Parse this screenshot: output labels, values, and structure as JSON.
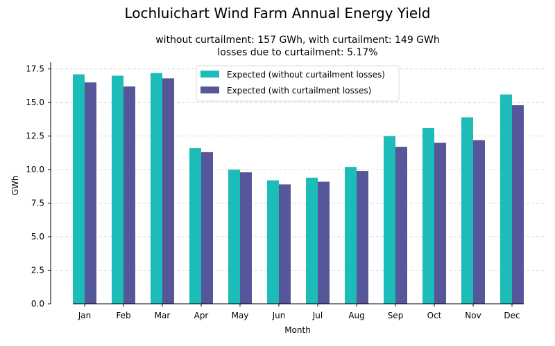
{
  "figure": {
    "suptitle": "Lochluichart Wind Farm Annual Energy Yield",
    "subtitle_line1": "without curtailment: 157 GWh, with curtailment: 149 GWh",
    "subtitle_line2": "losses due to curtailment: 5.17%"
  },
  "chart_data": {
    "type": "bar",
    "title": "without curtailment: 157 GWh, with curtailment: 149 GWh\nlosses due to curtailment: 5.17%",
    "xlabel": "Month",
    "ylabel": "GWh",
    "ylim": [
      0,
      18
    ],
    "yticks": [
      0.0,
      2.5,
      5.0,
      7.5,
      10.0,
      12.5,
      15.0,
      17.5
    ],
    "ytick_labels": [
      "0.0",
      "2.5",
      "5.0",
      "7.5",
      "10.0",
      "12.5",
      "15.0",
      "17.5"
    ],
    "grid": "y-dashed",
    "legend_position": "top-center",
    "categories": [
      "Jan",
      "Feb",
      "Mar",
      "Apr",
      "May",
      "Jun",
      "Jul",
      "Aug",
      "Sep",
      "Oct",
      "Nov",
      "Dec"
    ],
    "series": [
      {
        "name": "Expected (without curtailment losses)",
        "color": "#1cbcb8",
        "values": [
          17.1,
          17.0,
          17.2,
          11.6,
          10.0,
          9.2,
          9.4,
          10.2,
          12.5,
          13.1,
          13.9,
          15.6
        ]
      },
      {
        "name": "Expected (with curtailment losses)",
        "color": "#56569a",
        "values": [
          16.5,
          16.2,
          16.8,
          11.3,
          9.8,
          8.9,
          9.1,
          9.9,
          11.7,
          12.0,
          12.2,
          14.8
        ]
      }
    ]
  }
}
